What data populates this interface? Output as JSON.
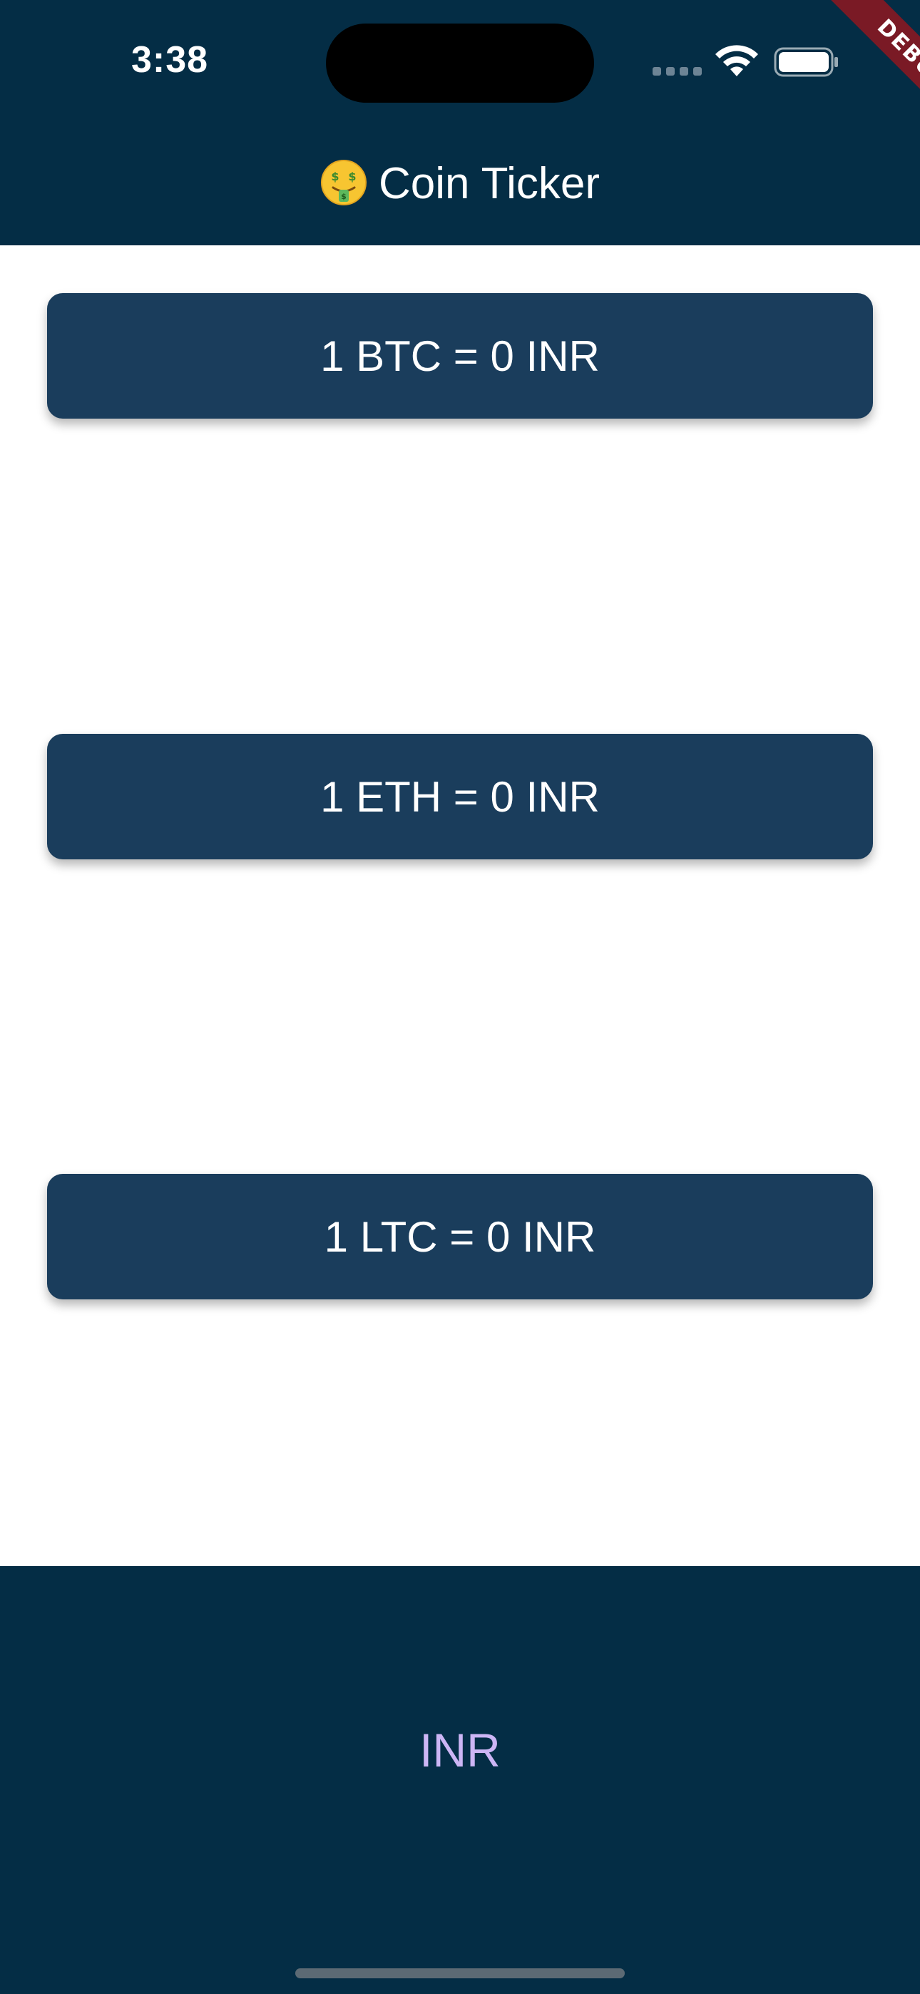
{
  "status_bar": {
    "time": "3:38"
  },
  "debug_banner": {
    "label": "DEBUG"
  },
  "app_bar": {
    "emoji_icon": "money-mouth-face-icon",
    "title": "Coin Ticker"
  },
  "rates": [
    {
      "coin": "BTC",
      "text": "1 BTC = 0 INR"
    },
    {
      "coin": "ETH",
      "text": "1 ETH = 0 INR"
    },
    {
      "coin": "LTC",
      "text": "1 LTC = 0 INR"
    }
  ],
  "picker": {
    "selected_currency": "INR"
  },
  "colors": {
    "header_bg": "#042d45",
    "card_bg": "#1a3d5c",
    "picker_text": "#cdb6f5",
    "debug_ribbon": "#7a1a25"
  }
}
